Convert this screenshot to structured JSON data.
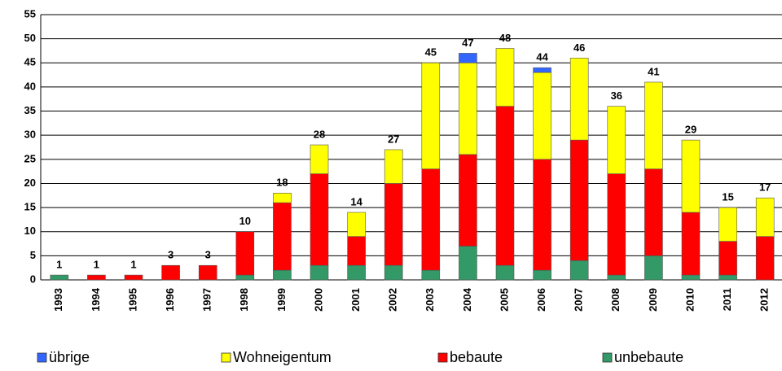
{
  "chart_data": {
    "type": "stacked-bar",
    "categories": [
      "1993",
      "1994",
      "1995",
      "1996",
      "1997",
      "1998",
      "1999",
      "2000",
      "2001",
      "2002",
      "2003",
      "2004",
      "2005",
      "2006",
      "2007",
      "2008",
      "2009",
      "2010",
      "2011",
      "2012"
    ],
    "series": [
      {
        "name": "übrige",
        "color": "#3366ff",
        "values": [
          0,
          0,
          0,
          0,
          0,
          0,
          0,
          0,
          0,
          0,
          0,
          2,
          0,
          1,
          0,
          0,
          0,
          0,
          0,
          0
        ]
      },
      {
        "name": "Wohneigentum",
        "color": "#ffff00",
        "values": [
          0,
          0,
          0,
          0,
          0,
          0,
          2,
          6,
          5,
          7,
          22,
          19,
          12,
          18,
          17,
          14,
          18,
          15,
          7,
          8
        ]
      },
      {
        "name": "bebaute",
        "color": "#ff0000",
        "values": [
          0,
          1,
          1,
          3,
          3,
          9,
          14,
          19,
          6,
          17,
          21,
          19,
          33,
          23,
          25,
          21,
          18,
          13,
          7,
          9
        ]
      },
      {
        "name": "unbebaute",
        "color": "#339966",
        "values": [
          1,
          0,
          0,
          0,
          0,
          1,
          2,
          3,
          3,
          3,
          2,
          7,
          3,
          2,
          4,
          1,
          5,
          1,
          1,
          0
        ]
      }
    ],
    "totals": [
      1,
      1,
      1,
      3,
      3,
      10,
      18,
      28,
      14,
      27,
      45,
      47,
      48,
      44,
      46,
      36,
      41,
      29,
      15,
      17
    ],
    "ylim": [
      0,
      55
    ],
    "yticks": [
      0,
      5,
      10,
      15,
      20,
      25,
      30,
      35,
      40,
      45,
      50,
      55
    ],
    "grid": true
  }
}
